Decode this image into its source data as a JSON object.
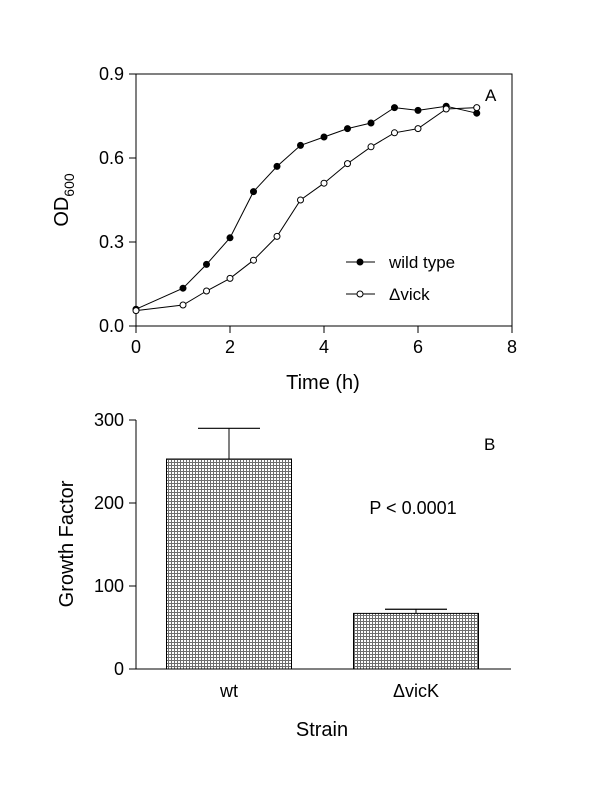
{
  "chart_data": [
    {
      "type": "line",
      "panel_label": "A",
      "xlabel": "Time  (h)",
      "ylabel_main": "OD",
      "ylabel_sub": "600",
      "xlim": [
        0,
        8
      ],
      "ylim": [
        0,
        0.9
      ],
      "xticks": [
        "0",
        "2",
        "4",
        "6",
        "8"
      ],
      "yticks": [
        "0.0",
        "0.3",
        "0.6",
        "0.9"
      ],
      "legend_placement": "lower-right",
      "grid": false,
      "series": [
        {
          "name": "wild type",
          "marker": "filled-circle",
          "x": [
            0,
            1,
            1.5,
            2,
            2.5,
            3,
            3.5,
            4,
            4.5,
            5,
            5.5,
            6,
            6.6,
            7.25
          ],
          "y": [
            0.06,
            0.135,
            0.22,
            0.315,
            0.48,
            0.57,
            0.645,
            0.675,
            0.705,
            0.725,
            0.78,
            0.77,
            0.785,
            0.76
          ]
        },
        {
          "name": "Δvick",
          "marker": "open-circle",
          "x": [
            0,
            1,
            1.5,
            2,
            2.5,
            3,
            3.5,
            4,
            4.5,
            5,
            5.5,
            6,
            6.6,
            7.25
          ],
          "y": [
            0.055,
            0.075,
            0.125,
            0.17,
            0.235,
            0.32,
            0.45,
            0.51,
            0.58,
            0.64,
            0.69,
            0.705,
            0.775,
            0.78
          ]
        }
      ]
    },
    {
      "type": "bar",
      "panel_label": "B",
      "xlabel": "Strain",
      "ylabel": "Growth Factor",
      "categories": [
        "wt",
        "ΔvicK"
      ],
      "values": [
        253,
        67
      ],
      "error_upper": [
        290,
        72
      ],
      "ylim": [
        0,
        300
      ],
      "yticks": [
        "0",
        "100",
        "200",
        "300"
      ],
      "annotation": "P < 0.0001",
      "bar_fill": "hatched-grey",
      "grid": false
    }
  ]
}
